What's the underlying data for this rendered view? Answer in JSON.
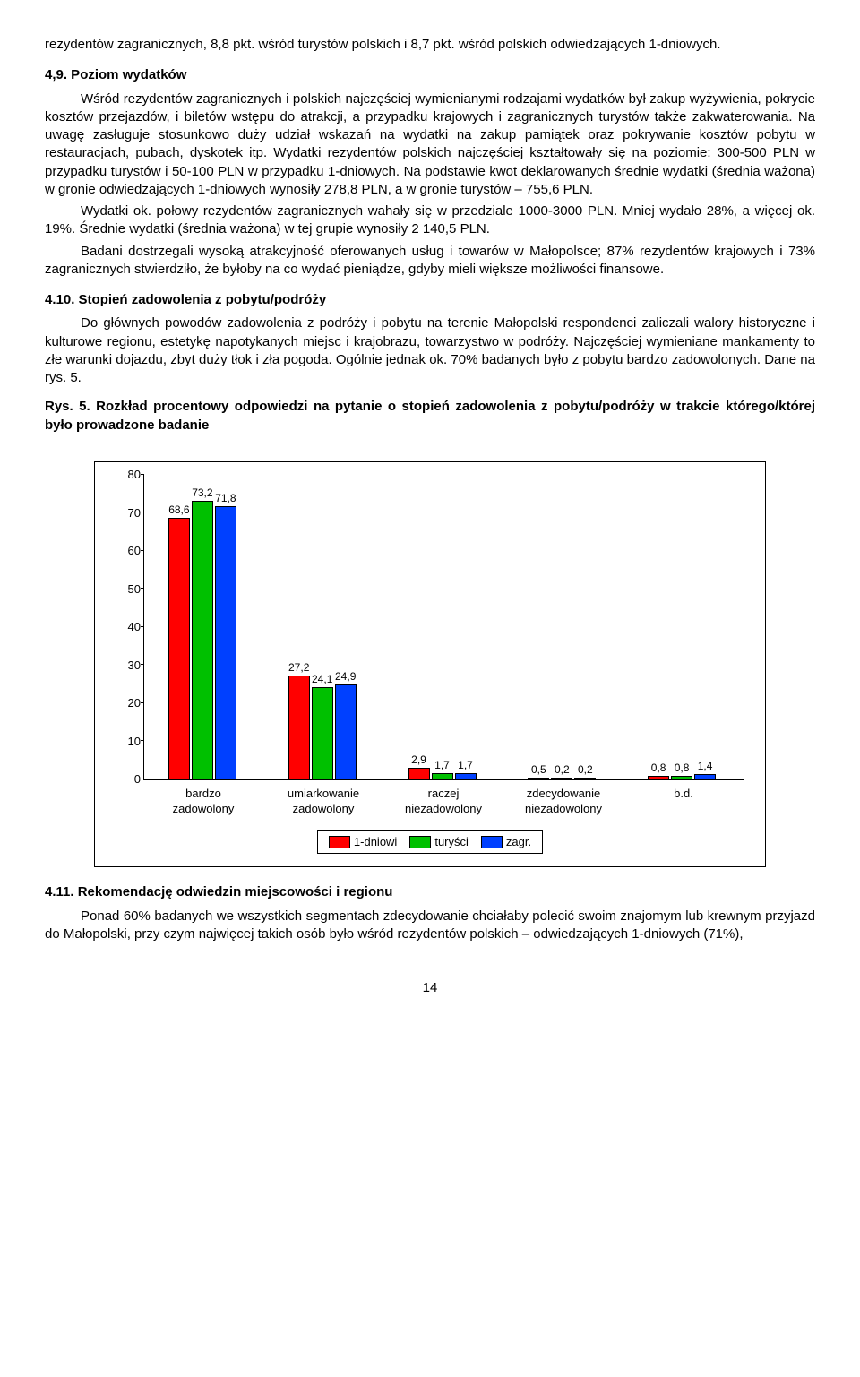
{
  "para1": "rezydentów zagranicznych, 8,8 pkt. wśród turystów polskich i 8,7 pkt. wśród polskich odwiedzających 1-dniowych.",
  "heading49": "4,9. Poziom wydatków",
  "para2a": "Wśród rezydentów zagranicznych i polskich najczęściej wymienianymi rodzajami wydatków był zakup wyżywienia, pokrycie kosztów przejazdów, i biletów wstępu do atrakcji, a przypadku krajowych i zagranicznych turystów także zakwaterowania. Na uwagę zasługuje stosunkowo duży udział wskazań na wydatki na zakup pamiątek oraz pokrywanie kosztów pobytu w restauracjach, pubach, dyskotek itp. Wydatki rezydentów polskich najczęściej kształtowały się na poziomie: 300-500 PLN w przypadku turystów i 50-100 PLN w przypadku 1-dniowych. Na podstawie kwot deklarowanych średnie wydatki (średnia ważona) w gronie odwiedzających 1-dniowych wynosiły 278,8 PLN, a w gronie turystów – 755,6 PLN.",
  "para2b": "Wydatki ok. połowy rezydentów zagranicznych wahały się w przedziale 1000-3000 PLN. Mniej wydało 28%, a więcej ok. 19%. Średnie wydatki (średnia ważona) w tej grupie wynosiły 2 140,5 PLN.",
  "para2c": "Badani dostrzegali wysoką atrakcyjność oferowanych usług i towarów w Małopolsce; 87% rezydentów krajowych i 73% zagranicznych stwierdziło, że byłoby na co wydać pieniądze, gdyby mieli większe możliwości finansowe.",
  "heading410": "4.10. Stopień zadowolenia z pobytu/podróży",
  "para3": "Do głównych powodów zadowolenia z podróży i pobytu na terenie Małopolski respondenci zaliczali walory historyczne i kulturowe regionu, estetykę napotykanych miejsc i krajobrazu, towarzystwo w podróży. Najczęściej wymieniane mankamenty to złe warunki dojazdu, zbyt duży tłok i zła pogoda. Ogólnie jednak ok. 70% badanych było z pobytu bardzo zadowolonych. Dane na rys. 5.",
  "fig_caption": "Rys. 5. Rozkład procentowy odpowiedzi na pytanie o stopień zadowolenia z pobytu/podróży w trakcie którego/której było prowadzone badanie",
  "chart": {
    "ymax": 80,
    "ytick_step": 10,
    "colors": {
      "s1": "#ff0000",
      "s2": "#00c000",
      "s3": "#0040ff"
    },
    "categories": [
      {
        "label": "bardzo\nzadowolony",
        "v": [
          68.6,
          73.2,
          71.8
        ],
        "labels": [
          "68,6",
          "73,2",
          "71,8"
        ]
      },
      {
        "label": "umiarkowanie\nzadowolony",
        "v": [
          27.2,
          24.1,
          24.9
        ],
        "labels": [
          "27,2",
          "24,1",
          "24,9"
        ]
      },
      {
        "label": "raczej\nniezadowolony",
        "v": [
          2.9,
          1.7,
          1.7
        ],
        "labels": [
          "2,9",
          "1,7",
          "1,7"
        ]
      },
      {
        "label": "zdecydowanie\nniezadowolony",
        "v": [
          0.5,
          0.2,
          0.2
        ],
        "labels": [
          "0,5",
          "0,2",
          "0,2"
        ]
      },
      {
        "label": "b.d.",
        "v": [
          0.8,
          0.8,
          1.4
        ],
        "labels": [
          "0,8",
          "0,8",
          "1,4"
        ]
      }
    ],
    "legend": [
      "1-dniowi",
      "turyści",
      "zagr."
    ]
  },
  "heading411": "4.11. Rekomendację odwiedzin miejscowości i regionu",
  "para4": "Ponad 60% badanych we wszystkich segmentach zdecydowanie chciałaby polecić swoim znajomym lub krewnym przyjazd do Małopolski, przy czym najwięcej takich osób było wśród rezydentów polskich – odwiedzających 1-dniowych (71%),",
  "page_num": "14"
}
